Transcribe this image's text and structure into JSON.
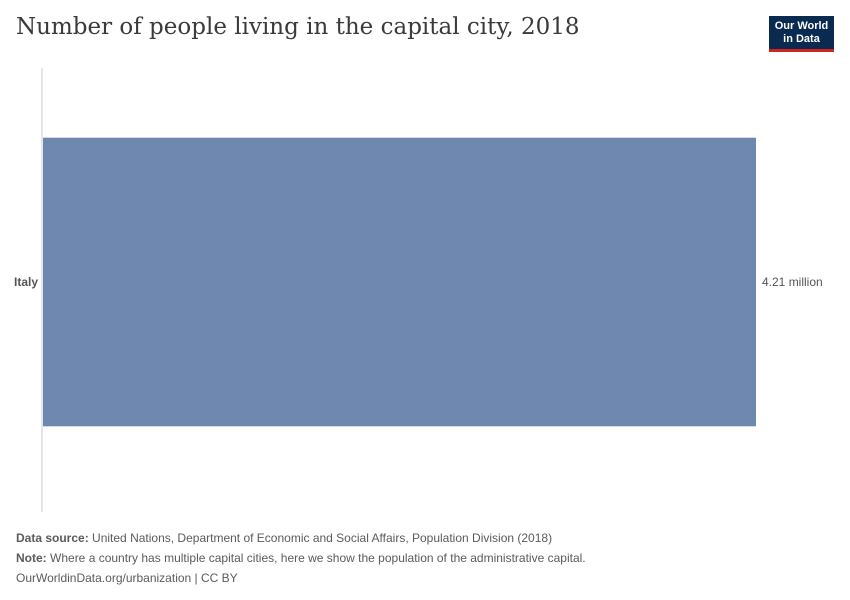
{
  "title": "Number of people living in the capital city, 2018",
  "logo": {
    "line1": "Our World",
    "line2": "in Data",
    "bg_color": "#0b2a4f",
    "accent_color": "#ce261e"
  },
  "chart_data": {
    "type": "bar",
    "orientation": "horizontal",
    "categories": [
      "Italy"
    ],
    "values": [
      4210000
    ],
    "value_labels": [
      "4.21 million"
    ],
    "bar_color": "#6f88b0",
    "xlim": [
      0,
      4210000
    ],
    "grid": false,
    "legend": "none"
  },
  "footer": {
    "source_label": "Data source:",
    "source_text": "United Nations, Department of Economic and Social Affairs, Population Division (2018)",
    "note_label": "Note:",
    "note_text": "Where a country has multiple capital cities, here we show the population of the administrative capital.",
    "url": "OurWorldinData.org/urbanization | CC BY"
  }
}
